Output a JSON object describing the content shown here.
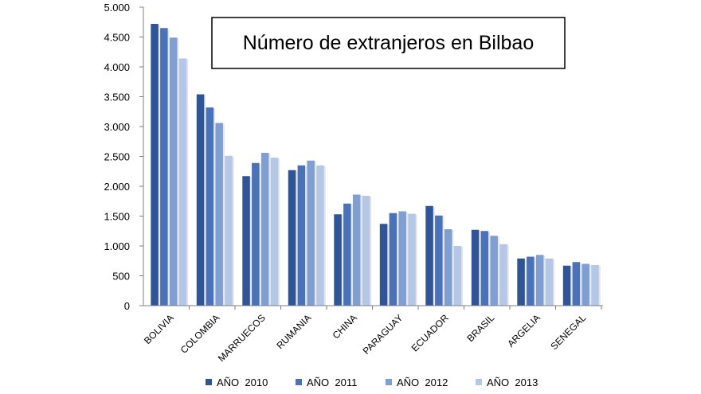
{
  "chart_data": {
    "type": "bar",
    "title": "Número de extranjeros en Bilbao",
    "xlabel": "",
    "ylabel": "",
    "ylim": [
      0,
      5000
    ],
    "yticks": [
      0,
      500,
      1000,
      1500,
      2000,
      2500,
      3000,
      3500,
      4000,
      4500,
      5000
    ],
    "ytick_labels": [
      "0",
      "500",
      "1.000",
      "1.500",
      "2.000",
      "2.500",
      "3.000",
      "3.500",
      "4.000",
      "4.500",
      "5.000"
    ],
    "categories": [
      "BOLIVIA",
      "COLOMBIA",
      "MARRUECOS",
      "RUMANIA",
      "CHINA",
      "PARAGUAY",
      "ECUADOR",
      "BRASIL",
      "ARGELIA",
      "SENEGAL"
    ],
    "series": [
      {
        "name": "AÑO  2010",
        "color": "#2F5597",
        "values": [
          4720,
          3540,
          2170,
          2270,
          1530,
          1370,
          1670,
          1270,
          790,
          670
        ]
      },
      {
        "name": "AÑO  2011",
        "color": "#4A72B8",
        "values": [
          4650,
          3320,
          2390,
          2350,
          1710,
          1550,
          1510,
          1250,
          820,
          730
        ]
      },
      {
        "name": "AÑO  2012",
        "color": "#7F9ED2",
        "values": [
          4490,
          3060,
          2560,
          2430,
          1860,
          1580,
          1280,
          1170,
          850,
          700
        ]
      },
      {
        "name": "AÑO  2013",
        "color": "#B4C7E7",
        "values": [
          4140,
          2510,
          2480,
          2350,
          1840,
          1540,
          1000,
          1030,
          790,
          680
        ]
      }
    ],
    "legend_position": "bottom",
    "grid": false
  }
}
